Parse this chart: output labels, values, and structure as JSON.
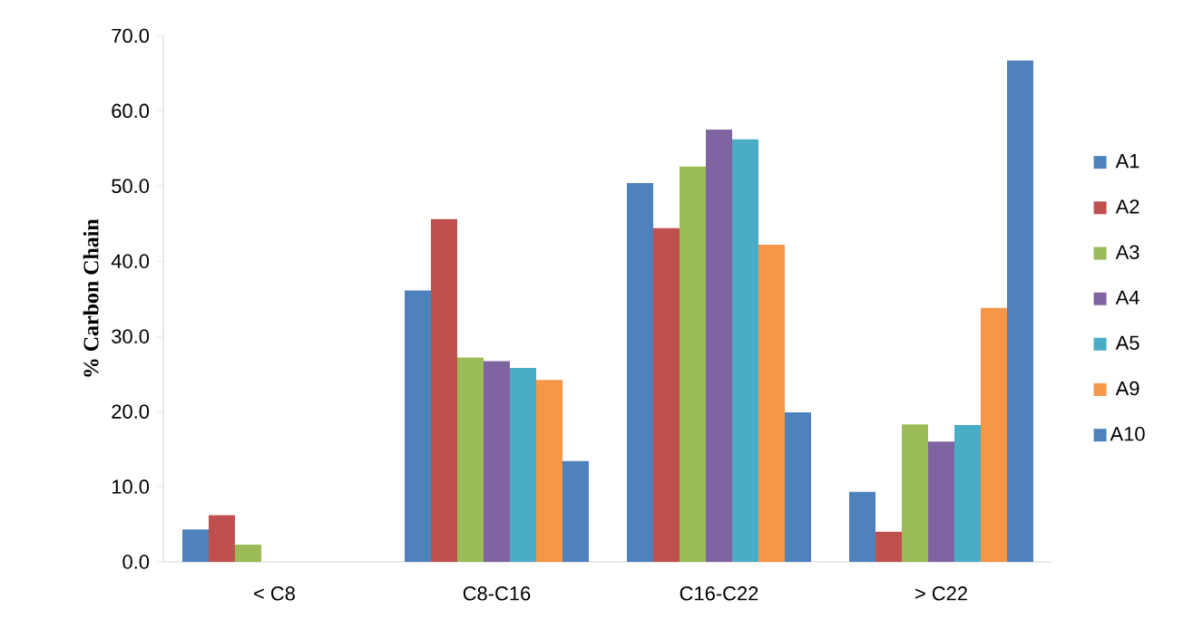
{
  "chart_data": {
    "type": "bar",
    "ylabel": "% Carbon Chain",
    "categories": [
      "< C8",
      "C8-C16",
      "C16-C22",
      "> C22"
    ],
    "series": [
      {
        "name": "A1",
        "color": "#4f81bd",
        "values": [
          4.3,
          36.1,
          50.4,
          9.3
        ]
      },
      {
        "name": "A2",
        "color": "#c0504d",
        "values": [
          6.2,
          45.6,
          44.4,
          4.0
        ]
      },
      {
        "name": "A3",
        "color": "#9bbb59",
        "values": [
          2.3,
          27.2,
          52.6,
          18.3
        ]
      },
      {
        "name": "A4",
        "color": "#8064a2",
        "values": [
          null,
          26.7,
          57.5,
          16.0
        ]
      },
      {
        "name": "A5",
        "color": "#4bacc6",
        "values": [
          null,
          25.8,
          56.2,
          18.2
        ]
      },
      {
        "name": "A9",
        "color": "#f79646",
        "values": [
          null,
          24.2,
          42.2,
          33.8
        ]
      },
      {
        "name": "A10",
        "color": "#4f81bd",
        "values": [
          null,
          13.4,
          19.9,
          66.7
        ]
      }
    ],
    "ylim": [
      0,
      70
    ],
    "yticks": [
      {
        "value": 0,
        "label": "0.0"
      },
      {
        "value": 10,
        "label": "10.0"
      },
      {
        "value": 20,
        "label": "20.0"
      },
      {
        "value": 30,
        "label": "30.0"
      },
      {
        "value": 40,
        "label": "40.0"
      },
      {
        "value": 50,
        "label": "50.0"
      },
      {
        "value": 60,
        "label": "60.0"
      },
      {
        "value": 70,
        "label": "70.0"
      }
    ],
    "legend": "right"
  }
}
